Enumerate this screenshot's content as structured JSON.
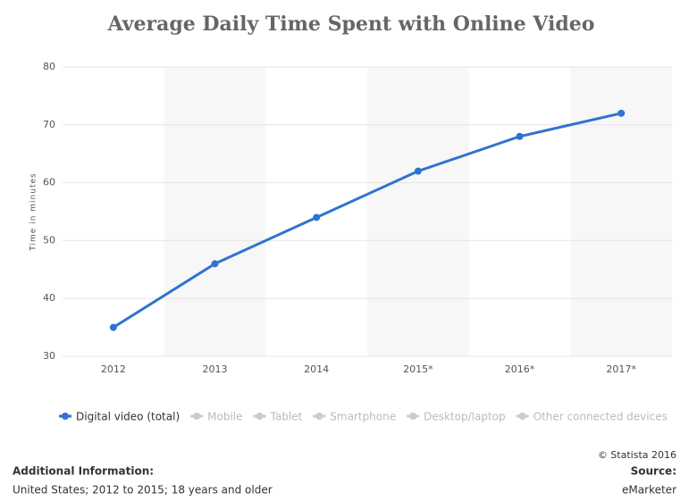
{
  "chart_data": {
    "type": "line",
    "title": "Average Daily Time Spent with Online Video",
    "y_label": "Time in minutes",
    "categories": [
      "2012",
      "2013",
      "2014",
      "2015*",
      "2016*",
      "2017*"
    ],
    "series": [
      {
        "name": "Digital video (total)",
        "color": "#2f73d0",
        "values": [
          35,
          46,
          54,
          62,
          68,
          72
        ]
      },
      {
        "name": "Mobile",
        "color": "#cccccc",
        "values": [
          null,
          null,
          null,
          null,
          null,
          null
        ]
      },
      {
        "name": "Tablet",
        "color": "#cccccc",
        "values": [
          null,
          null,
          null,
          null,
          null,
          null
        ]
      },
      {
        "name": "Smartphone",
        "color": "#cccccc",
        "values": [
          null,
          null,
          null,
          null,
          null,
          null
        ]
      },
      {
        "name": "Desktop/laptop",
        "color": "#cccccc",
        "values": [
          null,
          null,
          null,
          null,
          null,
          null
        ]
      },
      {
        "name": "Other connected devices",
        "color": "#cccccc",
        "values": [
          null,
          null,
          null,
          null,
          null,
          null
        ]
      }
    ],
    "ylim": [
      30,
      80
    ],
    "yticks": [
      30,
      40,
      50,
      60,
      70,
      80
    ],
    "grid": true,
    "copyright": "© Statista 2016",
    "additional_info_title": "Additional Information:",
    "additional_info": "United States; 2012 to 2015; 18 years and older",
    "source_title": "Source:",
    "source": "eMarketer"
  }
}
